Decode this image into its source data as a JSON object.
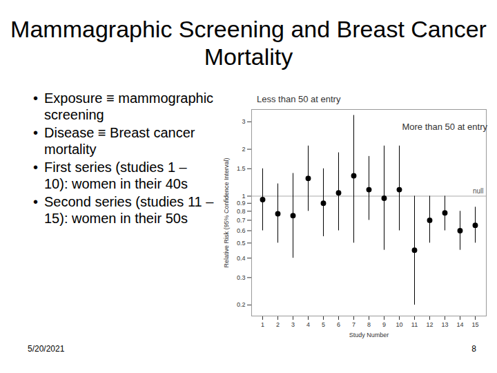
{
  "title": "Mammagraphic Screening and Breast Cancer Mortality",
  "bullets": [
    "Exposure ≡ mammographic screening",
    "Disease ≡ Breast cancer mortality",
    "First series (studies 1 – 10): women in their 40s",
    "Second series (studies 11 – 15): women in their 50s"
  ],
  "footer": {
    "date": "5/20/2021",
    "page": "8"
  },
  "chart_data": {
    "type": "errorbar",
    "xlabel": "Study Number",
    "ylabel": "Relative Risk (95% Confidence Interval)",
    "categories": [
      1,
      2,
      3,
      4,
      5,
      6,
      7,
      8,
      9,
      10,
      11,
      12,
      13,
      14,
      15
    ],
    "values": [
      0.95,
      0.77,
      0.75,
      1.3,
      0.9,
      1.05,
      1.35,
      1.1,
      0.97,
      1.1,
      0.45,
      0.7,
      0.78,
      0.6,
      0.65
    ],
    "ci_lower": [
      0.6,
      0.5,
      0.4,
      0.8,
      0.55,
      0.6,
      0.5,
      0.7,
      0.45,
      0.6,
      0.2,
      0.5,
      0.6,
      0.45,
      0.5
    ],
    "ci_upper": [
      1.5,
      1.2,
      1.4,
      2.1,
      1.5,
      1.9,
      3.3,
      1.8,
      2.1,
      2.1,
      1.0,
      1.0,
      1.0,
      0.8,
      0.85
    ],
    "annotations": [
      "Less than 50 at entry",
      "More than 50 at entry"
    ],
    "reference_line": {
      "value": 1,
      "label": "null"
    },
    "log": "y",
    "ylim": [
      0.17,
      3.6
    ],
    "yticks": [
      0.2,
      0.3,
      0.4,
      0.5,
      0.6,
      0.7,
      0.8,
      0.9,
      1,
      1.5,
      2,
      3
    ],
    "grid": false,
    "color": "#000000",
    "marker": "circle"
  }
}
